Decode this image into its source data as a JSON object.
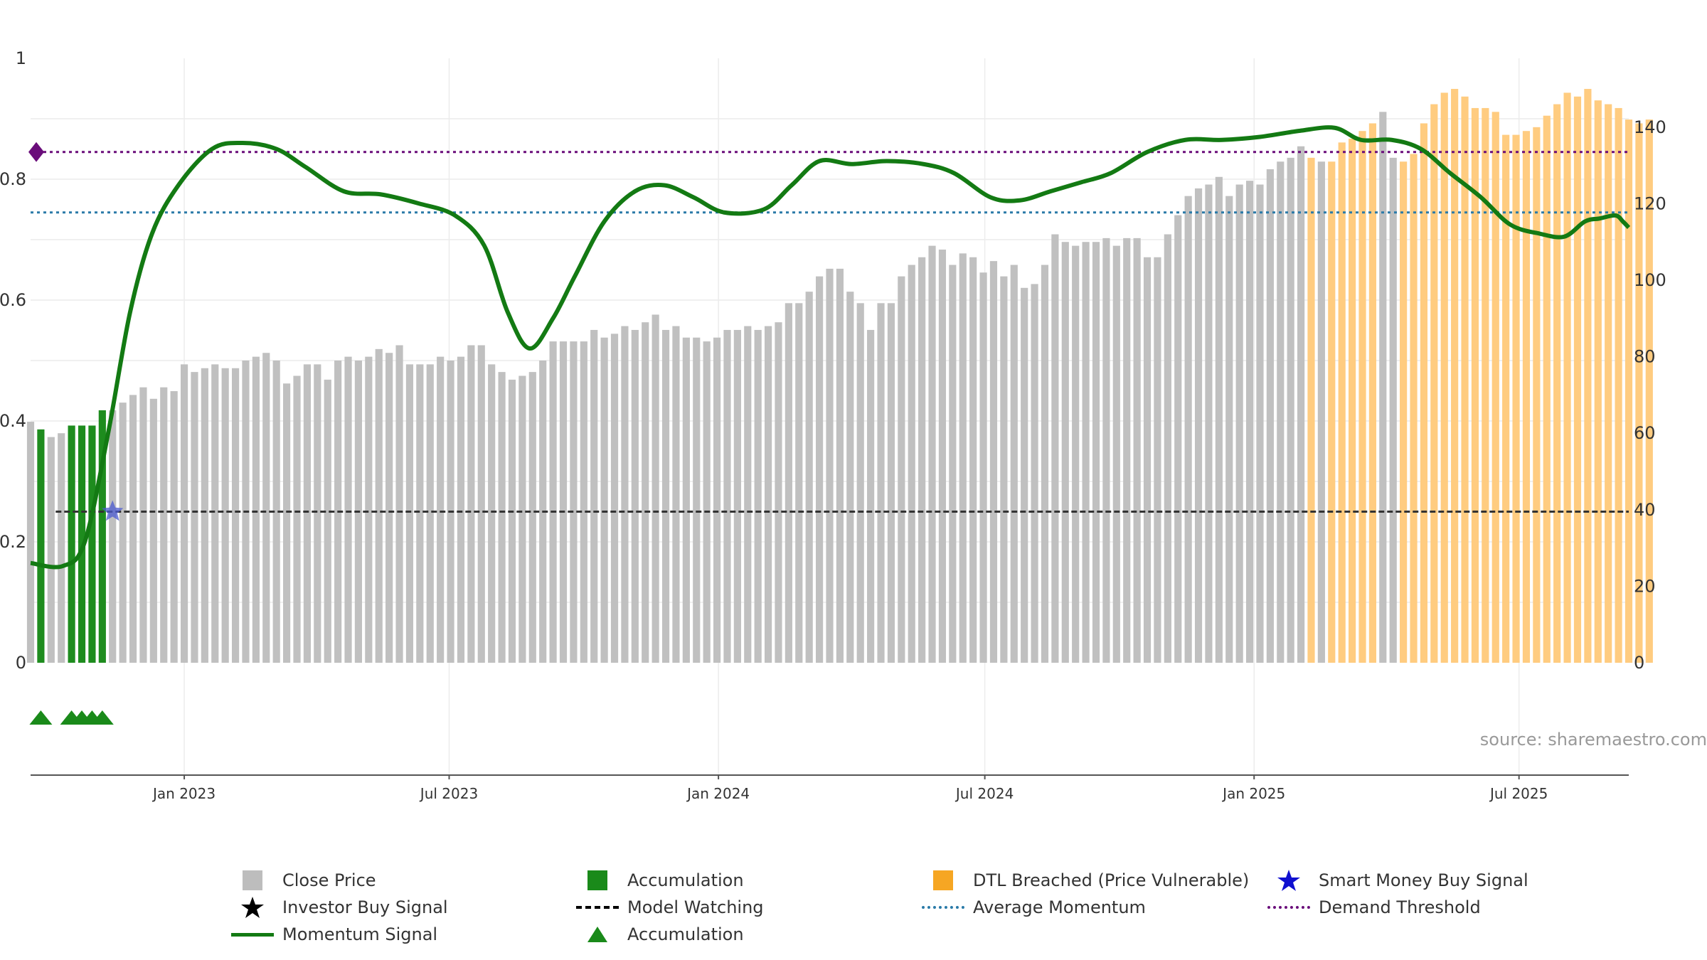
{
  "colors": {
    "close": "#c0c0c0",
    "accumulation": "#1e8c1e",
    "dtl": "#ffcc80",
    "momentum": "#137a13",
    "avg_momentum": "#2a7aa8",
    "demand": "#6a0d7a",
    "model_watching": "#333333",
    "smart_star": "#4b5ad0",
    "grid": "#ececec",
    "axis_text": "#333333",
    "source_text": "#999999"
  },
  "source": "source: sharemaestro.com",
  "legend": [
    {
      "key": "close",
      "label": "Close Price",
      "symbol": "square",
      "color": "#bdbdbd"
    },
    {
      "key": "acc_bar",
      "label": "Accumulation",
      "symbol": "square",
      "color": "#1a8a1a"
    },
    {
      "key": "dtl",
      "label": "DTL Breached (Price Vulnerable)",
      "symbol": "square",
      "color": "#f6a623"
    },
    {
      "key": "smart",
      "label": "Smart Money Buy Signal",
      "symbol": "star",
      "color": "#1010d0"
    },
    {
      "key": "investor",
      "label": "Investor Buy Signal",
      "symbol": "star",
      "color": "#000000"
    },
    {
      "key": "watching",
      "label": "Model Watching",
      "symbol": "dash",
      "color": "#000000"
    },
    {
      "key": "avg",
      "label": "Average Momentum",
      "symbol": "dot",
      "color": "#2a7aa8"
    },
    {
      "key": "demand",
      "label": "Demand Threshold",
      "symbol": "dot",
      "color": "#6a0d7a"
    },
    {
      "key": "momentum",
      "label": "Momentum Signal",
      "symbol": "solid",
      "color": "#137a13"
    },
    {
      "key": "acc_tri",
      "label": "Accumulation",
      "symbol": "triangle",
      "color": "#1a8a1a"
    }
  ],
  "chart_data": {
    "type": "bar",
    "title": "",
    "xlabel": "",
    "ylabel": "",
    "left_axis": {
      "range": [
        0,
        1
      ],
      "ticks": [
        "0",
        "0.2",
        "0.4",
        "0.6",
        "0.8",
        "1"
      ]
    },
    "right_axis": {
      "range": [
        0,
        158
      ],
      "ticks": [
        "0",
        "20",
        "40",
        "60",
        "80",
        "100",
        "120",
        "140"
      ]
    },
    "x_range": [
      "2022-09-18",
      "2025-09-14"
    ],
    "x_ticks": [
      {
        "date": "2023-01-01",
        "label": "Jan 2023"
      },
      {
        "date": "2023-07-01",
        "label": "Jul 2023"
      },
      {
        "date": "2024-01-01",
        "label": "Jan 2024"
      },
      {
        "date": "2024-07-01",
        "label": "Jul 2024"
      },
      {
        "date": "2025-01-01",
        "label": "Jan 2025"
      },
      {
        "date": "2025-07-01",
        "label": "Jul 2025"
      }
    ],
    "bars": {
      "first_week": "2022-09-18",
      "interval_days": 7,
      "close_price": [
        63,
        61,
        59,
        60,
        62,
        62,
        62,
        66,
        66,
        68,
        70,
        72,
        69,
        72,
        71,
        78,
        76,
        77,
        78,
        77,
        77,
        79,
        80,
        81,
        79,
        73,
        75,
        78,
        78,
        74,
        79,
        80,
        79,
        80,
        82,
        81,
        83,
        78,
        78,
        78,
        80,
        79,
        80,
        83,
        83,
        78,
        76,
        74,
        75,
        76,
        79,
        84,
        84,
        84,
        84,
        87,
        85,
        86,
        88,
        87,
        89,
        91,
        87,
        88,
        85,
        85,
        84,
        85,
        87,
        87,
        88,
        87,
        88,
        89,
        94,
        94,
        97,
        101,
        103,
        103,
        97,
        94,
        87,
        94,
        94,
        101,
        104,
        106,
        109,
        108,
        104,
        107,
        106,
        102,
        105,
        101,
        104,
        98,
        99,
        104,
        112,
        110,
        109,
        110,
        110,
        111,
        109,
        111,
        111,
        106,
        106,
        112,
        117,
        122,
        124,
        125,
        127,
        122,
        125,
        126,
        125,
        129,
        131,
        132,
        135,
        132,
        131,
        131,
        136,
        137,
        139,
        141,
        144,
        132,
        131,
        133,
        141,
        146,
        149,
        150,
        148,
        145,
        145,
        144,
        138,
        138,
        139,
        140,
        143,
        146,
        149,
        148,
        150,
        147,
        146,
        145,
        142,
        141,
        142
      ],
      "accumulation_weeks": [
        1,
        4,
        5,
        6,
        7
      ],
      "dtl_weeks": [
        125,
        127,
        128,
        129,
        130,
        131,
        134,
        135,
        136,
        137,
        138,
        139,
        140,
        141,
        142,
        143,
        144,
        145,
        146,
        147,
        148,
        149,
        150,
        151,
        152,
        153,
        154,
        155,
        156,
        157,
        158
      ]
    },
    "series": [
      {
        "name": "Momentum Signal",
        "axis": "left",
        "dates": [
          "2022-09-18",
          "2022-10-10",
          "2022-10-25",
          "2022-11-10",
          "2022-11-25",
          "2022-12-10",
          "2022-12-28",
          "2023-01-20",
          "2023-02-10",
          "2023-03-05",
          "2023-03-25",
          "2023-04-20",
          "2023-05-15",
          "2023-06-10",
          "2023-07-05",
          "2023-07-25",
          "2023-08-10",
          "2023-08-25",
          "2023-09-10",
          "2023-09-25",
          "2023-10-15",
          "2023-11-05",
          "2023-11-25",
          "2023-12-15",
          "2024-01-05",
          "2024-02-01",
          "2024-02-20",
          "2024-03-10",
          "2024-04-01",
          "2024-04-25",
          "2024-05-20",
          "2024-06-10",
          "2024-07-05",
          "2024-07-25",
          "2024-08-15",
          "2024-09-05",
          "2024-09-25",
          "2024-10-20",
          "2024-11-15",
          "2024-12-10",
          "2025-01-05",
          "2025-02-01",
          "2025-02-25",
          "2025-03-15",
          "2025-04-05",
          "2025-04-25",
          "2025-05-15",
          "2025-06-05",
          "2025-06-25",
          "2025-07-15",
          "2025-08-01",
          "2025-08-15",
          "2025-08-25",
          "2025-09-05",
          "2025-09-10",
          "2025-09-14"
        ],
        "values": [
          0.165,
          0.16,
          0.2,
          0.38,
          0.58,
          0.71,
          0.79,
          0.85,
          0.86,
          0.85,
          0.82,
          0.78,
          0.775,
          0.76,
          0.74,
          0.69,
          0.58,
          0.52,
          0.57,
          0.64,
          0.73,
          0.78,
          0.79,
          0.77,
          0.745,
          0.75,
          0.79,
          0.83,
          0.825,
          0.83,
          0.825,
          0.81,
          0.77,
          0.765,
          0.78,
          0.795,
          0.81,
          0.845,
          0.865,
          0.865,
          0.87,
          0.88,
          0.885,
          0.865,
          0.865,
          0.85,
          0.81,
          0.77,
          0.725,
          0.71,
          0.705,
          0.73,
          0.735,
          0.74,
          0.73,
          0.72
        ]
      },
      {
        "name": "Average Momentum",
        "axis": "left",
        "value": 0.745
      },
      {
        "name": "Demand Threshold",
        "axis": "left",
        "value": 0.845
      },
      {
        "name": "Model Watching",
        "axis": "left",
        "value": 0.25,
        "start": "2022-10-10"
      }
    ],
    "signals": {
      "smart_money_buy": [
        {
          "date": "2022-11-13",
          "value": 0.25
        }
      ],
      "demand_marker": [
        {
          "date": "2022-09-18",
          "value": 0.845
        }
      ],
      "accumulation_triangles": [
        "2022-09-25",
        "2022-10-16",
        "2022-10-23",
        "2022-10-30",
        "2022-11-06"
      ]
    }
  }
}
